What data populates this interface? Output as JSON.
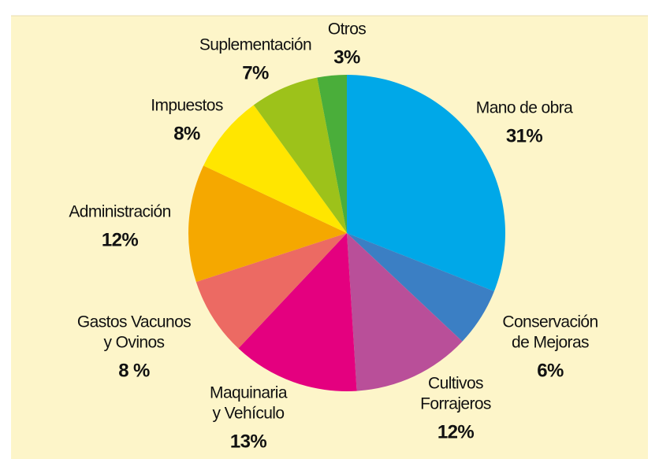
{
  "chart_data": {
    "type": "pie",
    "labels": [
      [
        "Mano de obra"
      ],
      [
        "Conservación",
        "de Mejoras"
      ],
      [
        "Cultivos",
        "Forrajeros"
      ],
      [
        "Maquinaria",
        "y Vehículo"
      ],
      [
        "Gastos Vacunos",
        "y Ovinos"
      ],
      [
        "Administración"
      ],
      [
        "Impuestos"
      ],
      [
        "Suplementación"
      ],
      [
        "Otros"
      ]
    ],
    "values": [
      31,
      6,
      12,
      13,
      8,
      12,
      8,
      7,
      3
    ],
    "value_labels": [
      "31%",
      "6%",
      "12%",
      "13%",
      "8 %",
      "12%",
      "8%",
      "7%",
      "3%"
    ],
    "colors": [
      "#00a8e8",
      "#3b7fc4",
      "#b94f99",
      "#e4007f",
      "#ec6a63",
      "#f5a800",
      "#ffe600",
      "#9dc21a",
      "#4aae3a"
    ]
  }
}
